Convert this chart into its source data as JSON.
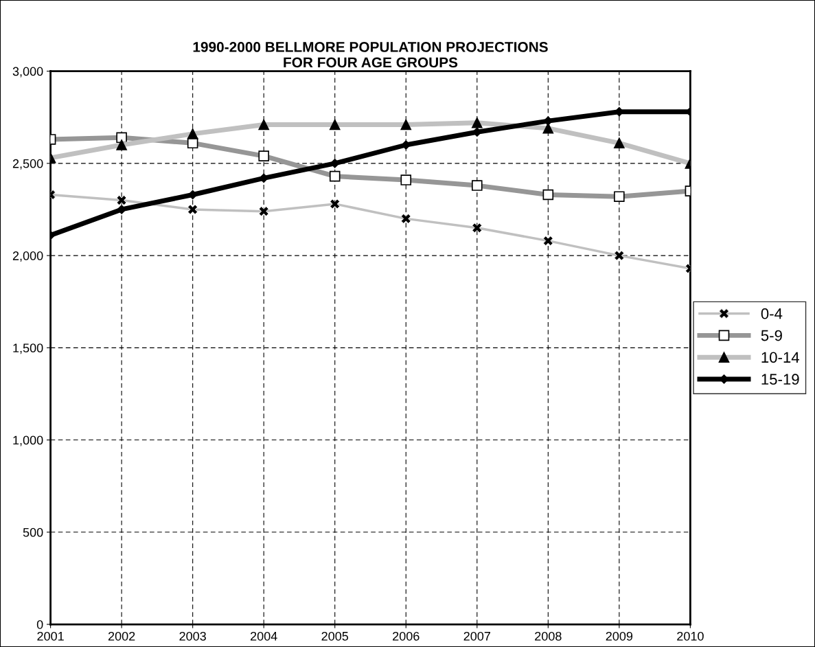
{
  "chart_data": {
    "type": "line",
    "title": "1990-2000 BELLMORE POPULATION PROJECTIONS\nFOR FOUR AGE GROUPS",
    "categories": [
      "2001",
      "2002",
      "2003",
      "2004",
      "2005",
      "2006",
      "2007",
      "2008",
      "2009",
      "2010"
    ],
    "series": [
      {
        "name": "0-4",
        "color": "#c0c0c0",
        "marker": "cross",
        "values": [
          2330,
          2300,
          2250,
          2240,
          2280,
          2200,
          2150,
          2080,
          2000,
          1930
        ]
      },
      {
        "name": "5-9",
        "color": "#969696",
        "marker": "square",
        "values": [
          2630,
          2640,
          2610,
          2540,
          2430,
          2410,
          2380,
          2330,
          2320,
          2350
        ]
      },
      {
        "name": "10-14",
        "color": "#c0c0c0",
        "marker": "triangle",
        "values": [
          2530,
          2600,
          2660,
          2710,
          2710,
          2710,
          2720,
          2690,
          2610,
          2500
        ]
      },
      {
        "name": "15-19",
        "color": "#000000",
        "marker": "diamond",
        "values": [
          2110,
          2250,
          2330,
          2420,
          2500,
          2600,
          2670,
          2730,
          2780,
          2780
        ]
      }
    ],
    "ylim": [
      0,
      3000
    ],
    "yticks": [
      0,
      500,
      {
        "value": 1000,
        "label": "1,000"
      },
      {
        "value": 1500,
        "label": "1,500"
      },
      {
        "value": 2000,
        "label": "2,000"
      },
      {
        "value": 2500,
        "label": "2,500"
      },
      {
        "value": 3000,
        "label": "3,000"
      }
    ],
    "grid": true,
    "legend": "right",
    "line_style": "solid"
  }
}
